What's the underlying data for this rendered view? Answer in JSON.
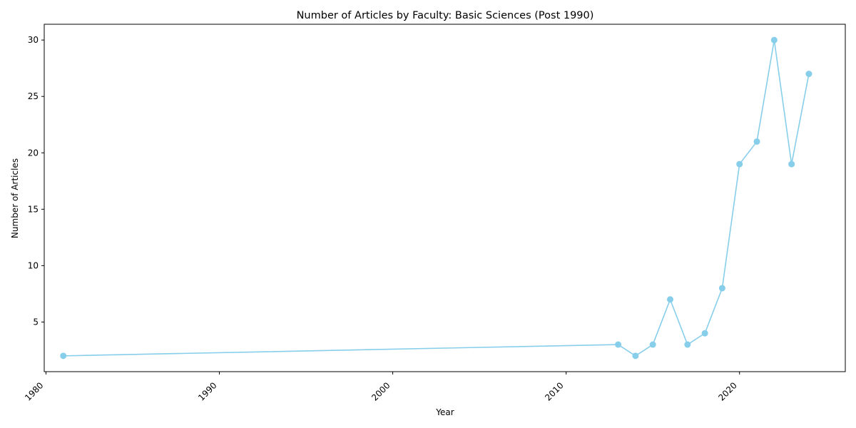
{
  "chart_data": {
    "type": "line",
    "title": "Number of Articles by Faculty: Basic Sciences (Post 1990)",
    "xlabel": "Year",
    "ylabel": "Number of Articles",
    "xlim": [
      1979.9,
      2026.1
    ],
    "ylim": [
      0.6,
      31.4
    ],
    "xticks": [
      1980,
      1990,
      2000,
      2010,
      2020
    ],
    "yticks": [
      5,
      10,
      15,
      20,
      25,
      30
    ],
    "grid": false,
    "legend": null,
    "series": [
      {
        "color": "#87ceeb",
        "marker": "circle",
        "points": [
          {
            "x": 1981,
            "y": 2
          },
          {
            "x": 2013,
            "y": 3
          },
          {
            "x": 2014,
            "y": 2
          },
          {
            "x": 2015,
            "y": 3
          },
          {
            "x": 2016,
            "y": 7
          },
          {
            "x": 2017,
            "y": 3
          },
          {
            "x": 2018,
            "y": 4
          },
          {
            "x": 2019,
            "y": 8
          },
          {
            "x": 2020,
            "y": 19
          },
          {
            "x": 2021,
            "y": 21
          },
          {
            "x": 2022,
            "y": 30
          },
          {
            "x": 2023,
            "y": 19
          },
          {
            "x": 2024,
            "y": 27
          }
        ]
      }
    ]
  }
}
